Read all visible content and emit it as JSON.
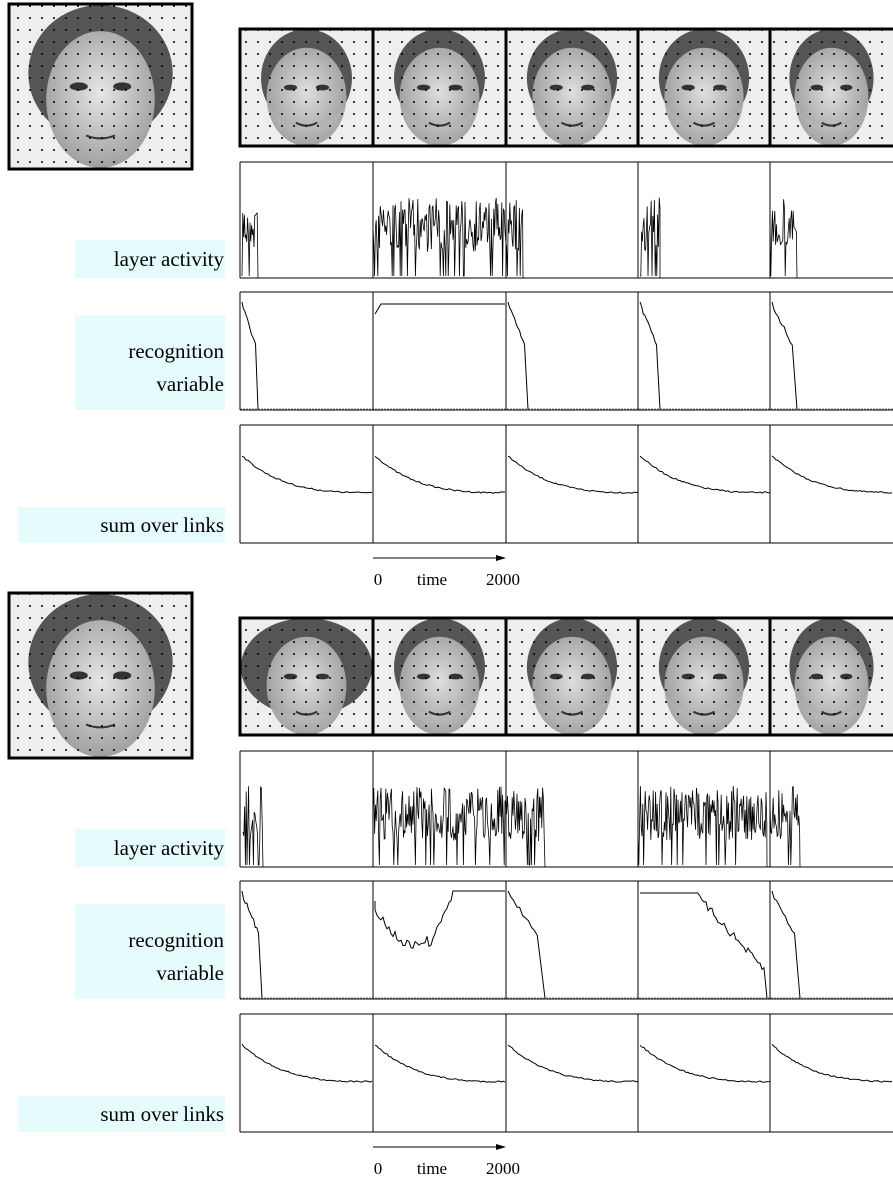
{
  "panels": [
    {
      "rows": {
        "activity": "layer activity",
        "recognition": [
          "recognition",
          "variable"
        ],
        "links": "sum over links"
      },
      "axis": {
        "start": 0,
        "label": "time",
        "end": 2000
      }
    },
    {
      "rows": {
        "activity": "layer activity",
        "recognition": [
          "recognition",
          "variable"
        ],
        "links": "sum over links"
      },
      "axis": {
        "start": 0,
        "label": "time",
        "end": 2000
      }
    }
  ]
}
